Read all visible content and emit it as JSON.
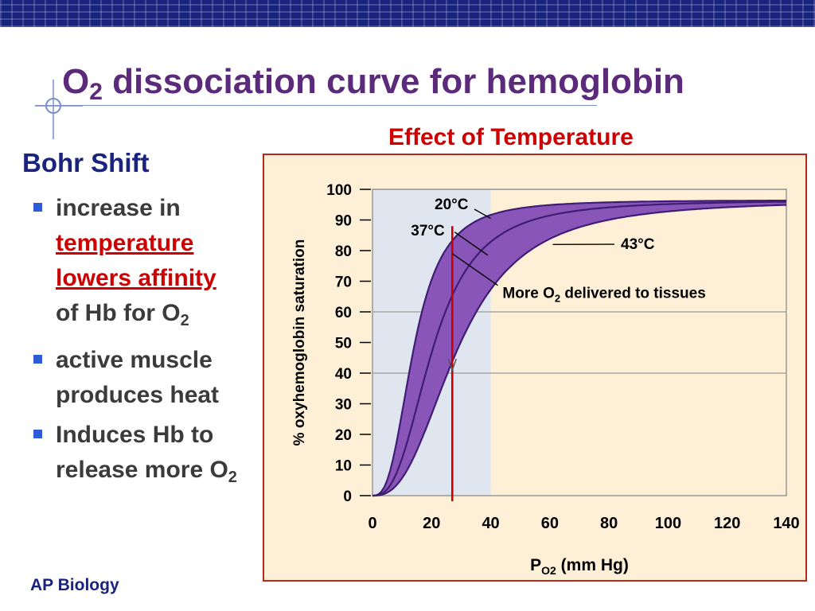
{
  "slide": {
    "title": "dissociation curve for hemoglobin",
    "title_symbol": "O",
    "title_subscript": "2",
    "subtitle": "Effect of Temperature",
    "footer": "AP Biology"
  },
  "bullets": {
    "heading": "Bohr Shift",
    "items": [
      {
        "pre": "increase in",
        "hl1": "temperature",
        "hl2": "lowers affinity",
        "post": "of Hb for O",
        "sub": "2"
      },
      {
        "text": "active muscle produces heat"
      },
      {
        "text": "Induces Hb to release more O",
        "sub": "2"
      }
    ]
  },
  "colors": {
    "title": "#5b2a7a",
    "subtitle": "#cc0000",
    "heading": "#1a237e",
    "band_fill": "#8a55b8",
    "curve_stroke": "#3f1d73",
    "marker_line": "#cc0000",
    "plot_bg_left": "#dfe6f0",
    "plot_bg_right": "#fdf0d6"
  },
  "chart_data": {
    "type": "line",
    "title": "Effect of Temperature",
    "xlabel_main": "P",
    "xlabel_sub": "O2",
    "xlabel_rest": " (mm Hg)",
    "ylabel": "% oxyhemoglobin saturation",
    "xlim": [
      0,
      140
    ],
    "ylim": [
      0,
      100
    ],
    "xticks": [
      0,
      20,
      40,
      60,
      80,
      100,
      120,
      140
    ],
    "yticks": [
      0,
      10,
      20,
      30,
      40,
      50,
      60,
      70,
      80,
      90,
      100
    ],
    "gridlines_y": [
      40,
      60,
      100
    ],
    "marker_x": 27,
    "shaded_region_x": [
      0,
      40
    ],
    "series": [
      {
        "name": "20°C",
        "p50": 14.0,
        "n": 2.8,
        "ymax": 96.5
      },
      {
        "name": "37°C",
        "p50": 20.5,
        "n": 2.7,
        "ymax": 96.5
      },
      {
        "name": "43°C",
        "p50": 29.0,
        "n": 2.6,
        "ymax": 96.5
      }
    ],
    "annotations": [
      {
        "text": "20°C",
        "x": 21.0,
        "y": 93.5,
        "pointer_to": [
          40.0,
          90.5
        ]
      },
      {
        "text": "37°C",
        "x": 13.0,
        "y": 85.0,
        "pointer_to": [
          39.0,
          78.5
        ]
      },
      {
        "text": "43°C",
        "x": 84.0,
        "y": 80.5,
        "pointer_to": [
          61.0,
          82.0
        ]
      },
      {
        "text_main": "More O",
        "text_sub": "2",
        "text_rest": " delivered to tissues",
        "x": 44.0,
        "y": 64.5,
        "pointer_to": [
          27.0,
          79.0
        ]
      }
    ]
  }
}
